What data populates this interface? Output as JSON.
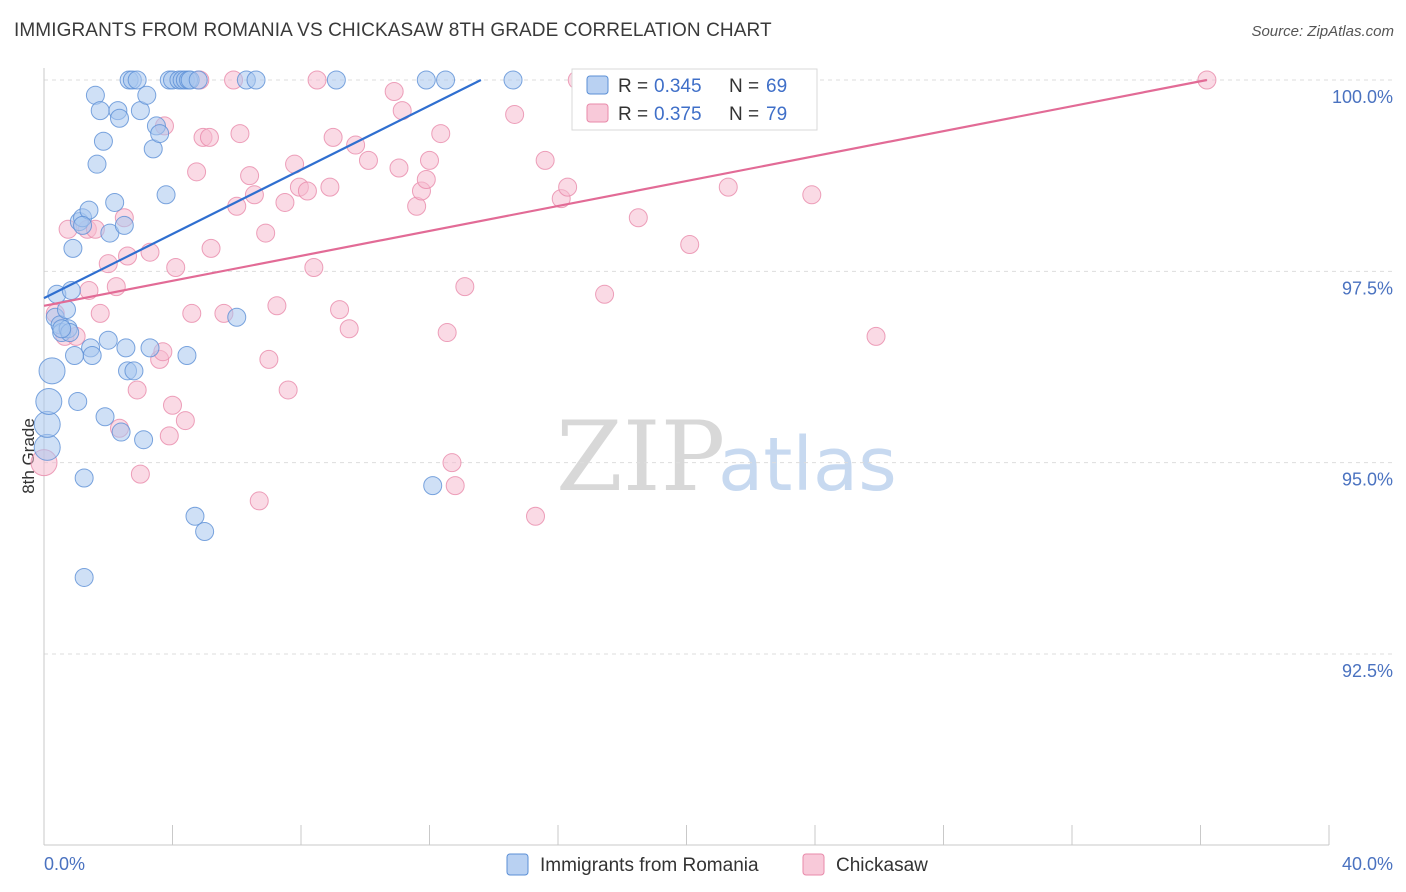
{
  "title": "IMMIGRANTS FROM ROMANIA VS CHICKASAW 8TH GRADE CORRELATION CHART",
  "source": "Source: ZipAtlas.com",
  "watermark": {
    "zip": "ZIP",
    "atlas": "atlas"
  },
  "colors": {
    "blue_fill": "#a8c6ef",
    "blue_stroke": "#5b8fd6",
    "blue_line": "#2f6fd0",
    "pink_fill": "#f6bcd0",
    "pink_stroke": "#e88aaa",
    "pink_line": "#e26b96",
    "grid": "#dddddd",
    "tick_text": "#4a72c0"
  },
  "legend": {
    "rows": [
      {
        "r_label": "R =",
        "r_value": "0.345",
        "n_label": "N =",
        "n_value": "69"
      },
      {
        "r_label": "R =",
        "r_value": "0.375",
        "n_label": "N =",
        "n_value": "79"
      }
    ]
  },
  "chart_data": {
    "type": "scatter",
    "xlabel": "",
    "ylabel": "8th Grade",
    "xlim": [
      0,
      40
    ],
    "ylim": [
      90.0,
      100.4
    ],
    "x_tick_labels": [
      "0.0%",
      "40.0%"
    ],
    "y_ticks": [
      92.5,
      95.0,
      97.5,
      100.0
    ],
    "y_tick_labels": [
      "92.5%",
      "95.0%",
      "97.5%",
      "100.0%"
    ],
    "grid": true,
    "legend_position": "top-center",
    "series": [
      {
        "name": "Immigrants from Romania",
        "color": "blue",
        "trend": {
          "x": [
            0.0,
            13.6
          ],
          "y": [
            97.15,
            100.0
          ]
        },
        "points": [
          [
            0.1,
            95.2
          ],
          [
            0.1,
            95.5
          ],
          [
            0.15,
            95.8
          ],
          [
            0.25,
            96.2
          ],
          [
            0.35,
            96.9
          ],
          [
            0.4,
            97.2
          ],
          [
            0.5,
            96.8
          ],
          [
            0.55,
            96.7
          ],
          [
            0.7,
            97.0
          ],
          [
            0.75,
            96.75
          ],
          [
            0.8,
            96.7
          ],
          [
            0.85,
            97.25
          ],
          [
            0.9,
            97.8
          ],
          [
            0.95,
            96.4
          ],
          [
            1.05,
            95.8
          ],
          [
            1.1,
            98.15
          ],
          [
            1.2,
            98.2
          ],
          [
            1.25,
            94.8
          ],
          [
            1.25,
            93.5
          ],
          [
            1.4,
            98.3
          ],
          [
            1.45,
            96.5
          ],
          [
            1.5,
            96.4
          ],
          [
            1.6,
            99.8
          ],
          [
            1.65,
            98.9
          ],
          [
            1.75,
            99.6
          ],
          [
            1.85,
            99.2
          ],
          [
            1.9,
            95.6
          ],
          [
            2.0,
            96.6
          ],
          [
            2.05,
            98.0
          ],
          [
            2.2,
            98.4
          ],
          [
            2.3,
            99.6
          ],
          [
            2.35,
            99.5
          ],
          [
            2.4,
            95.4
          ],
          [
            2.5,
            98.1
          ],
          [
            2.55,
            96.5
          ],
          [
            2.6,
            96.2
          ],
          [
            2.65,
            100.0
          ],
          [
            2.75,
            100.0
          ],
          [
            2.8,
            96.2
          ],
          [
            2.9,
            100.0
          ],
          [
            3.0,
            99.6
          ],
          [
            3.1,
            95.3
          ],
          [
            3.2,
            99.8
          ],
          [
            3.3,
            96.5
          ],
          [
            3.4,
            99.1
          ],
          [
            3.5,
            99.4
          ],
          [
            3.6,
            99.3
          ],
          [
            3.8,
            98.5
          ],
          [
            3.9,
            100.0
          ],
          [
            4.0,
            100.0
          ],
          [
            4.2,
            100.0
          ],
          [
            4.3,
            100.0
          ],
          [
            4.4,
            100.0
          ],
          [
            4.45,
            96.4
          ],
          [
            4.5,
            100.0
          ],
          [
            4.55,
            100.0
          ],
          [
            4.7,
            94.3
          ],
          [
            4.8,
            100.0
          ],
          [
            5.0,
            94.1
          ],
          [
            6.0,
            96.9
          ],
          [
            6.3,
            100.0
          ],
          [
            6.6,
            100.0
          ],
          [
            9.1,
            100.0
          ],
          [
            11.9,
            100.0
          ],
          [
            12.1,
            94.7
          ],
          [
            12.5,
            100.0
          ],
          [
            14.6,
            100.0
          ],
          [
            0.55,
            96.75
          ],
          [
            1.2,
            98.1
          ]
        ]
      },
      {
        "name": "Chickasaw",
        "color": "pink",
        "trend": {
          "x": [
            0.0,
            36.2
          ],
          "y": [
            97.05,
            100.0
          ]
        },
        "points": [
          [
            0.0,
            95.0
          ],
          [
            0.35,
            96.95
          ],
          [
            0.65,
            96.65
          ],
          [
            0.75,
            98.05
          ],
          [
            1.0,
            96.65
          ],
          [
            1.35,
            98.05
          ],
          [
            1.4,
            97.25
          ],
          [
            1.6,
            98.05
          ],
          [
            1.75,
            96.95
          ],
          [
            2.0,
            97.6
          ],
          [
            2.25,
            97.3
          ],
          [
            2.35,
            95.45
          ],
          [
            2.5,
            98.2
          ],
          [
            2.6,
            97.7
          ],
          [
            2.9,
            95.95
          ],
          [
            3.0,
            94.85
          ],
          [
            3.3,
            97.75
          ],
          [
            3.6,
            96.35
          ],
          [
            3.7,
            96.45
          ],
          [
            3.9,
            95.35
          ],
          [
            4.0,
            95.75
          ],
          [
            4.1,
            97.55
          ],
          [
            4.4,
            95.55
          ],
          [
            4.6,
            96.95
          ],
          [
            4.75,
            98.8
          ],
          [
            4.95,
            99.25
          ],
          [
            5.15,
            99.25
          ],
          [
            5.2,
            97.8
          ],
          [
            5.6,
            96.95
          ],
          [
            5.9,
            100.0
          ],
          [
            6.0,
            98.35
          ],
          [
            6.1,
            99.3
          ],
          [
            6.4,
            98.75
          ],
          [
            6.55,
            98.5
          ],
          [
            6.7,
            94.5
          ],
          [
            6.9,
            98.0
          ],
          [
            7.0,
            96.35
          ],
          [
            7.25,
            97.05
          ],
          [
            7.5,
            98.4
          ],
          [
            7.6,
            95.95
          ],
          [
            7.8,
            98.9
          ],
          [
            7.95,
            98.6
          ],
          [
            8.2,
            98.55
          ],
          [
            8.4,
            97.55
          ],
          [
            8.5,
            100.0
          ],
          [
            8.9,
            98.6
          ],
          [
            9.0,
            99.25
          ],
          [
            9.2,
            97.0
          ],
          [
            9.5,
            96.75
          ],
          [
            9.7,
            99.15
          ],
          [
            10.1,
            98.95
          ],
          [
            10.9,
            99.85
          ],
          [
            11.05,
            98.85
          ],
          [
            11.15,
            99.6
          ],
          [
            11.6,
            98.35
          ],
          [
            11.75,
            98.55
          ],
          [
            11.9,
            98.7
          ],
          [
            12.0,
            98.95
          ],
          [
            12.35,
            99.3
          ],
          [
            12.7,
            95.0
          ],
          [
            12.8,
            94.7
          ],
          [
            13.1,
            97.3
          ],
          [
            14.65,
            99.55
          ],
          [
            15.3,
            94.3
          ],
          [
            15.6,
            98.95
          ],
          [
            16.1,
            98.45
          ],
          [
            16.3,
            98.6
          ],
          [
            16.6,
            100.0
          ],
          [
            17.45,
            97.2
          ],
          [
            18.5,
            98.2
          ],
          [
            20.1,
            97.85
          ],
          [
            21.3,
            98.6
          ],
          [
            22.0,
            100.0
          ],
          [
            23.9,
            98.5
          ],
          [
            25.9,
            96.65
          ],
          [
            36.2,
            100.0
          ],
          [
            4.85,
            100.0
          ],
          [
            12.55,
            96.7
          ],
          [
            3.75,
            99.4
          ]
        ]
      }
    ]
  },
  "bottom_legend": {
    "items": [
      {
        "label": "Immigrants from Romania"
      },
      {
        "label": "Chickasaw"
      }
    ]
  }
}
